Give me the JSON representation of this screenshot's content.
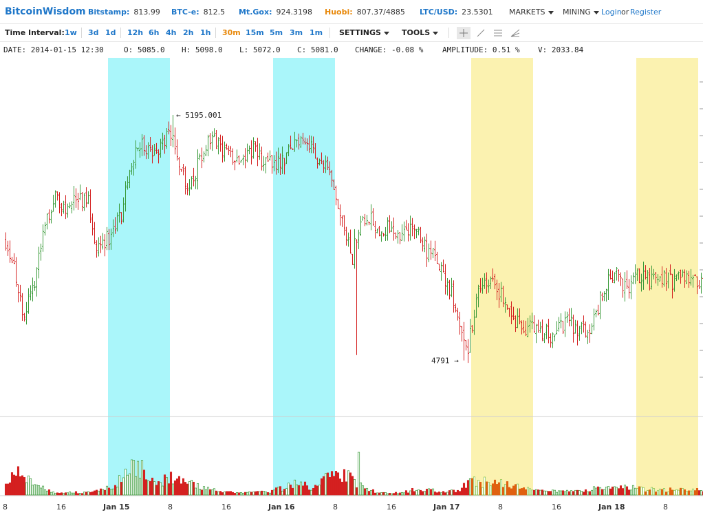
{
  "header": {
    "brand": "BitcoinWisdom",
    "tickers": [
      {
        "exchange": "Bitstamp:",
        "price": "813.99"
      },
      {
        "exchange": "BTC-e:",
        "price": "812.5"
      },
      {
        "exchange": "Mt.Gox:",
        "price": "924.3198"
      },
      {
        "exchange": "Huobi:",
        "price": "807.37/4885"
      },
      {
        "exchange": "LTC/USD:",
        "price": "23.5301"
      }
    ],
    "markets_label": "MARKETS",
    "mining_label": "MINING",
    "login_label": "Login",
    "or_text": "or",
    "register_label": "Register"
  },
  "toolbar": {
    "time_interval_label": "Time Interval:",
    "intervals": [
      "1w",
      "3d",
      "1d",
      "12h",
      "6h",
      "4h",
      "2h",
      "1h",
      "30m",
      "15m",
      "5m",
      "3m",
      "1m"
    ],
    "active_interval": "30m",
    "settings_label": "SETTINGS",
    "tools_label": "TOOLS",
    "tool_icons": [
      "crosshair-icon",
      "line-draw-icon",
      "parallel-lines-icon",
      "fan-lines-icon"
    ]
  },
  "info": {
    "date": "DATE: 2014-01-15 12:30",
    "open": "O: 5085.0",
    "high": "H: 5098.0",
    "low": "L: 5072.0",
    "close": "C: 5081.0",
    "change": "CHANGE: -0.08 %",
    "amplitude": "AMPLITUDE: 0.51 %",
    "volume": "V: 2033.84"
  },
  "colors": {
    "up": "#3a9a3a",
    "down": "#d42020",
    "highlight_cyan": "#aaf6fa",
    "highlight_yellow": "#fbf2b0",
    "vol_up_hl": "#e0a100",
    "vol_down_hl": "#e06010"
  },
  "chart_data": {
    "type": "candlestick",
    "high_marker": "5195.001",
    "low_marker": "4791",
    "price_range": [
      4700,
      5280
    ],
    "x_labels": [
      "8",
      "16",
      "Jan 15",
      "8",
      "16",
      "Jan 16",
      "8",
      "16",
      "Jan 17",
      "8",
      "16",
      "Jan 18",
      "8"
    ],
    "highlight_bands": [
      {
        "color": "cyan",
        "from_bar": 50,
        "to_bar": 80
      },
      {
        "color": "cyan",
        "from_bar": 130,
        "to_bar": 160
      },
      {
        "color": "yellow",
        "from_bar": 226,
        "to_bar": 256
      },
      {
        "color": "yellow",
        "from_bar": 306,
        "to_bar": 336
      }
    ],
    "close_path": [
      [
        0,
        4990
      ],
      [
        4,
        4950
      ],
      [
        8,
        4870
      ],
      [
        12,
        4890
      ],
      [
        16,
        4960
      ],
      [
        20,
        5030
      ],
      [
        24,
        5060
      ],
      [
        28,
        5040
      ],
      [
        32,
        5050
      ],
      [
        36,
        5060
      ],
      [
        40,
        5050
      ],
      [
        44,
        4980
      ],
      [
        48,
        4990
      ],
      [
        52,
        5000
      ],
      [
        56,
        5030
      ],
      [
        60,
        5110
      ],
      [
        64,
        5150
      ],
      [
        68,
        5140
      ],
      [
        72,
        5130
      ],
      [
        76,
        5150
      ],
      [
        80,
        5165
      ],
      [
        84,
        5120
      ],
      [
        88,
        5080
      ],
      [
        92,
        5100
      ],
      [
        96,
        5140
      ],
      [
        100,
        5150
      ],
      [
        104,
        5145
      ],
      [
        108,
        5130
      ],
      [
        112,
        5125
      ],
      [
        116,
        5130
      ],
      [
        120,
        5140
      ],
      [
        124,
        5120
      ],
      [
        128,
        5115
      ],
      [
        132,
        5120
      ],
      [
        136,
        5125
      ],
      [
        140,
        5150
      ],
      [
        144,
        5160
      ],
      [
        148,
        5140
      ],
      [
        152,
        5125
      ],
      [
        156,
        5100
      ],
      [
        160,
        5050
      ],
      [
        164,
        5000
      ],
      [
        168,
        4960
      ],
      [
        172,
        5030
      ],
      [
        176,
        5030
      ],
      [
        180,
        5010
      ],
      [
        184,
        5010
      ],
      [
        188,
        5000
      ],
      [
        192,
        5000
      ],
      [
        196,
        5010
      ],
      [
        200,
        5005
      ],
      [
        204,
        4970
      ],
      [
        208,
        4960
      ],
      [
        212,
        4930
      ],
      [
        216,
        4900
      ],
      [
        220,
        4860
      ],
      [
        224,
        4810
      ],
      [
        228,
        4890
      ],
      [
        232,
        4920
      ],
      [
        236,
        4920
      ],
      [
        240,
        4900
      ],
      [
        244,
        4880
      ],
      [
        248,
        4850
      ],
      [
        252,
        4840
      ],
      [
        256,
        4850
      ],
      [
        260,
        4840
      ],
      [
        264,
        4830
      ],
      [
        268,
        4845
      ],
      [
        272,
        4855
      ],
      [
        276,
        4845
      ],
      [
        280,
        4840
      ],
      [
        284,
        4850
      ],
      [
        288,
        4890
      ],
      [
        292,
        4920
      ],
      [
        296,
        4930
      ],
      [
        300,
        4910
      ],
      [
        304,
        4920
      ],
      [
        308,
        4930
      ],
      [
        312,
        4920
      ],
      [
        316,
        4920
      ],
      [
        320,
        4925
      ],
      [
        324,
        4920
      ],
      [
        328,
        4925
      ],
      [
        332,
        4920
      ],
      [
        336,
        4920
      ],
      [
        340,
        4915
      ]
    ],
    "volume_path": [
      [
        0,
        18
      ],
      [
        4,
        28
      ],
      [
        8,
        32
      ],
      [
        12,
        25
      ],
      [
        16,
        14
      ],
      [
        20,
        6
      ],
      [
        24,
        4
      ],
      [
        28,
        3
      ],
      [
        32,
        4
      ],
      [
        36,
        3
      ],
      [
        40,
        4
      ],
      [
        44,
        5
      ],
      [
        48,
        8
      ],
      [
        52,
        14
      ],
      [
        56,
        24
      ],
      [
        60,
        35
      ],
      [
        64,
        42
      ],
      [
        68,
        28
      ],
      [
        72,
        14
      ],
      [
        76,
        18
      ],
      [
        80,
        30
      ],
      [
        84,
        22
      ],
      [
        88,
        16
      ],
      [
        92,
        14
      ],
      [
        96,
        10
      ],
      [
        100,
        8
      ],
      [
        104,
        5
      ],
      [
        108,
        4
      ],
      [
        112,
        4
      ],
      [
        116,
        4
      ],
      [
        120,
        4
      ],
      [
        124,
        4
      ],
      [
        128,
        5
      ],
      [
        132,
        8
      ],
      [
        136,
        12
      ],
      [
        140,
        18
      ],
      [
        144,
        16
      ],
      [
        148,
        10
      ],
      [
        152,
        14
      ],
      [
        156,
        28
      ],
      [
        160,
        34
      ],
      [
        164,
        30
      ],
      [
        168,
        22
      ],
      [
        172,
        16
      ],
      [
        176,
        8
      ],
      [
        180,
        4
      ],
      [
        184,
        3
      ],
      [
        188,
        3
      ],
      [
        192,
        4
      ],
      [
        196,
        6
      ],
      [
        200,
        10
      ],
      [
        204,
        8
      ],
      [
        208,
        6
      ],
      [
        212,
        5
      ],
      [
        216,
        6
      ],
      [
        220,
        8
      ],
      [
        224,
        16
      ],
      [
        228,
        22
      ],
      [
        232,
        18
      ],
      [
        236,
        16
      ],
      [
        240,
        18
      ],
      [
        244,
        15
      ],
      [
        248,
        12
      ],
      [
        252,
        10
      ],
      [
        256,
        10
      ],
      [
        260,
        7
      ],
      [
        264,
        5
      ],
      [
        268,
        5
      ],
      [
        272,
        6
      ],
      [
        276,
        5
      ],
      [
        280,
        5
      ],
      [
        284,
        8
      ],
      [
        288,
        11
      ],
      [
        292,
        10
      ],
      [
        296,
        9
      ],
      [
        300,
        11
      ],
      [
        304,
        12
      ],
      [
        308,
        9
      ],
      [
        312,
        8
      ],
      [
        316,
        7
      ],
      [
        320,
        7
      ],
      [
        324,
        8
      ],
      [
        328,
        7
      ],
      [
        332,
        7
      ],
      [
        336,
        7
      ],
      [
        340,
        7
      ]
    ]
  }
}
